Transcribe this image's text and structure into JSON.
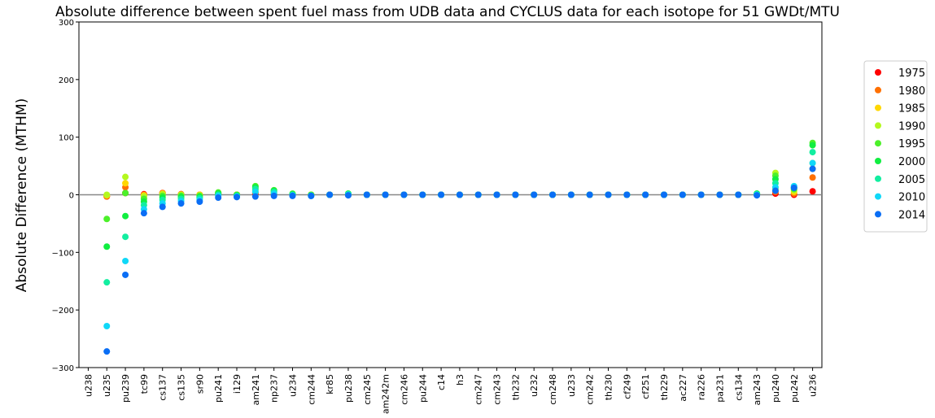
{
  "chart_data": {
    "type": "scatter",
    "title": "Absolute difference between spent fuel mass from UDB data and CYCLUS data for each isotope for 51 GWDt/MTU",
    "y_label": "Absolute Difference (MTHM)",
    "categories": [
      "u238",
      "u235",
      "pu239",
      "tc99",
      "cs137",
      "cs135",
      "sr90",
      "pu241",
      "i129",
      "am241",
      "np237",
      "u234",
      "cm244",
      "kr85",
      "pu238",
      "cm245",
      "am242m",
      "cm246",
      "pu244",
      "c14",
      "h3",
      "cm247",
      "cm243",
      "th232",
      "u232",
      "cm248",
      "u233",
      "cm242",
      "th230",
      "cf249",
      "cf251",
      "th229",
      "ac227",
      "ra226",
      "pa231",
      "cs134",
      "am243",
      "pu240",
      "pu242",
      "u236"
    ],
    "series": [
      {
        "name": "1975",
        "color": "#ff0000",
        "values": [
          null,
          -3,
          3,
          1,
          3,
          1,
          0,
          1,
          0,
          2,
          1,
          0,
          0,
          0,
          0,
          0,
          0,
          0,
          0,
          0,
          0,
          0,
          0,
          0,
          0,
          0,
          0,
          0,
          0,
          0,
          0,
          0,
          0,
          0,
          0,
          0,
          0,
          2,
          0,
          6
        ]
      },
      {
        "name": "1980",
        "color": "#ff7000",
        "values": [
          null,
          -3,
          13,
          0,
          3,
          1,
          0,
          2,
          0,
          4,
          2,
          0,
          0,
          0,
          0,
          0,
          0,
          0,
          0,
          0,
          0,
          0,
          0,
          0,
          0,
          0,
          0,
          0,
          0,
          0,
          0,
          0,
          0,
          0,
          0,
          0,
          0,
          5,
          2,
          30
        ]
      },
      {
        "name": "1985",
        "color": "#ffd700",
        "values": [
          null,
          -1,
          20,
          -1,
          2,
          0,
          0,
          3,
          0,
          7,
          4,
          1,
          0,
          0,
          0,
          0,
          0,
          0,
          0,
          0,
          0,
          0,
          0,
          0,
          0,
          0,
          0,
          0,
          0,
          0,
          0,
          0,
          0,
          0,
          0,
          0,
          0,
          10,
          5,
          45
        ]
      },
      {
        "name": "1990",
        "color": "#b4f81e",
        "values": [
          null,
          0,
          31,
          -3,
          1,
          0,
          -1,
          3,
          0,
          10,
          6,
          1,
          0,
          0,
          1,
          0,
          0,
          0,
          0,
          0,
          0,
          0,
          0,
          0,
          0,
          0,
          0,
          0,
          0,
          0,
          0,
          0,
          0,
          0,
          0,
          0,
          1,
          38,
          8,
          55
        ]
      },
      {
        "name": "1995",
        "color": "#4cf02a",
        "values": [
          null,
          -42,
          3,
          -7,
          -2,
          -2,
          -2,
          4,
          0,
          15,
          8,
          2,
          0,
          0,
          2,
          0,
          0,
          0,
          0,
          0,
          0,
          0,
          0,
          0,
          0,
          0,
          0,
          0,
          0,
          0,
          0,
          0,
          0,
          0,
          0,
          0,
          2,
          33,
          10,
          90
        ]
      },
      {
        "name": "2000",
        "color": "#10ee40",
        "values": [
          null,
          -90,
          -37,
          -12,
          -5,
          -4,
          -4,
          2,
          -1,
          13,
          7,
          1,
          -1,
          0,
          2,
          0,
          0,
          0,
          0,
          0,
          0,
          0,
          0,
          0,
          0,
          0,
          0,
          0,
          0,
          0,
          0,
          0,
          0,
          0,
          0,
          0,
          2,
          27,
          12,
          86
        ]
      },
      {
        "name": "2005",
        "color": "#12eea0",
        "values": [
          null,
          -152,
          -73,
          -18,
          -9,
          -7,
          -6,
          0,
          -2,
          10,
          5,
          0,
          -1,
          0,
          1,
          0,
          0,
          0,
          0,
          0,
          0,
          0,
          0,
          0,
          0,
          0,
          0,
          0,
          0,
          0,
          0,
          0,
          0,
          0,
          0,
          0,
          1,
          20,
          13,
          74
        ]
      },
      {
        "name": "2010",
        "color": "#10d8f8",
        "values": [
          null,
          -228,
          -115,
          -25,
          -15,
          -11,
          -9,
          -2,
          -3,
          5,
          2,
          -1,
          -2,
          0,
          0,
          0,
          0,
          0,
          0,
          0,
          0,
          0,
          0,
          0,
          0,
          0,
          0,
          0,
          0,
          0,
          0,
          0,
          0,
          0,
          0,
          0,
          0,
          13,
          15,
          55
        ]
      },
      {
        "name": "2014",
        "color": "#0a6ef5",
        "values": [
          null,
          -272,
          -139,
          -32,
          -21,
          -15,
          -12,
          -5,
          -4,
          -3,
          -2,
          -2,
          -2,
          0,
          -1,
          0,
          0,
          0,
          0,
          0,
          0,
          0,
          0,
          0,
          0,
          0,
          0,
          0,
          0,
          0,
          0,
          0,
          0,
          0,
          0,
          0,
          -1,
          7,
          12,
          45
        ]
      }
    ],
    "ylim": [
      -300,
      300
    ],
    "yticks": [
      {
        "value": -300,
        "label": "−300"
      },
      {
        "value": -200,
        "label": "−200"
      },
      {
        "value": -100,
        "label": "−100"
      },
      0,
      100,
      200,
      300
    ],
    "hline": 0,
    "legend": "right"
  }
}
